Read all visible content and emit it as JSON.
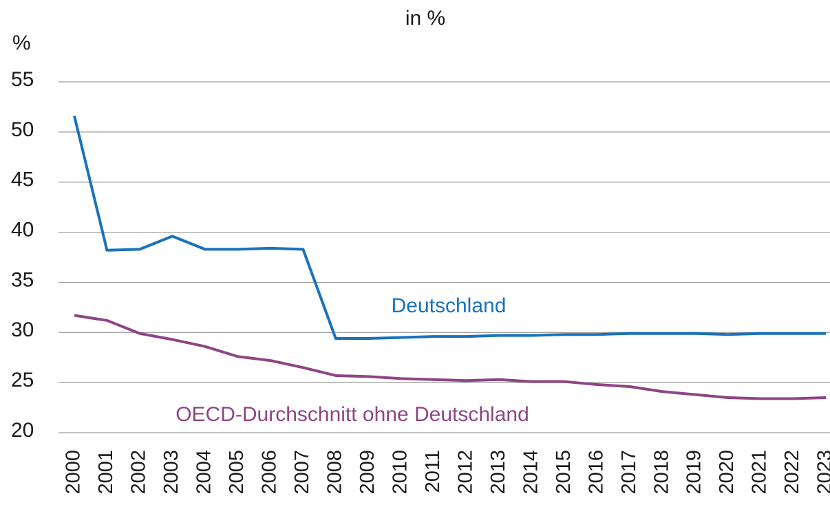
{
  "chart_data": {
    "type": "line",
    "title": "in %",
    "y_label": "%",
    "categories": [
      "2000",
      "2001",
      "2002",
      "2003",
      "2004",
      "2005",
      "2006",
      "2007",
      "2008",
      "2009",
      "2010",
      "2011",
      "2012",
      "2013",
      "2014",
      "2015",
      "2016",
      "2017",
      "2018",
      "2019",
      "2020",
      "2021",
      "2022",
      "2023"
    ],
    "series": [
      {
        "name": "Deutschland",
        "color": "#1a72bb",
        "values": [
          51.6,
          38.2,
          38.3,
          39.6,
          38.3,
          38.3,
          38.4,
          38.3,
          29.4,
          29.4,
          29.5,
          29.6,
          29.6,
          29.7,
          29.7,
          29.8,
          29.8,
          29.9,
          29.9,
          29.9,
          29.8,
          29.9,
          29.9,
          29.9
        ]
      },
      {
        "name": "OECD-Durchschnitt ohne Deutschland",
        "color": "#8e4585",
        "values": [
          31.7,
          31.2,
          29.9,
          29.3,
          28.6,
          27.6,
          27.2,
          26.5,
          25.7,
          25.6,
          25.4,
          25.3,
          25.2,
          25.3,
          25.1,
          25.1,
          24.8,
          24.6,
          24.1,
          23.8,
          23.5,
          23.4,
          23.4,
          23.5
        ]
      }
    ],
    "ylim": [
      20,
      55
    ],
    "yticks": [
      20,
      25,
      30,
      35,
      40,
      45,
      50,
      55
    ],
    "grid": true
  }
}
